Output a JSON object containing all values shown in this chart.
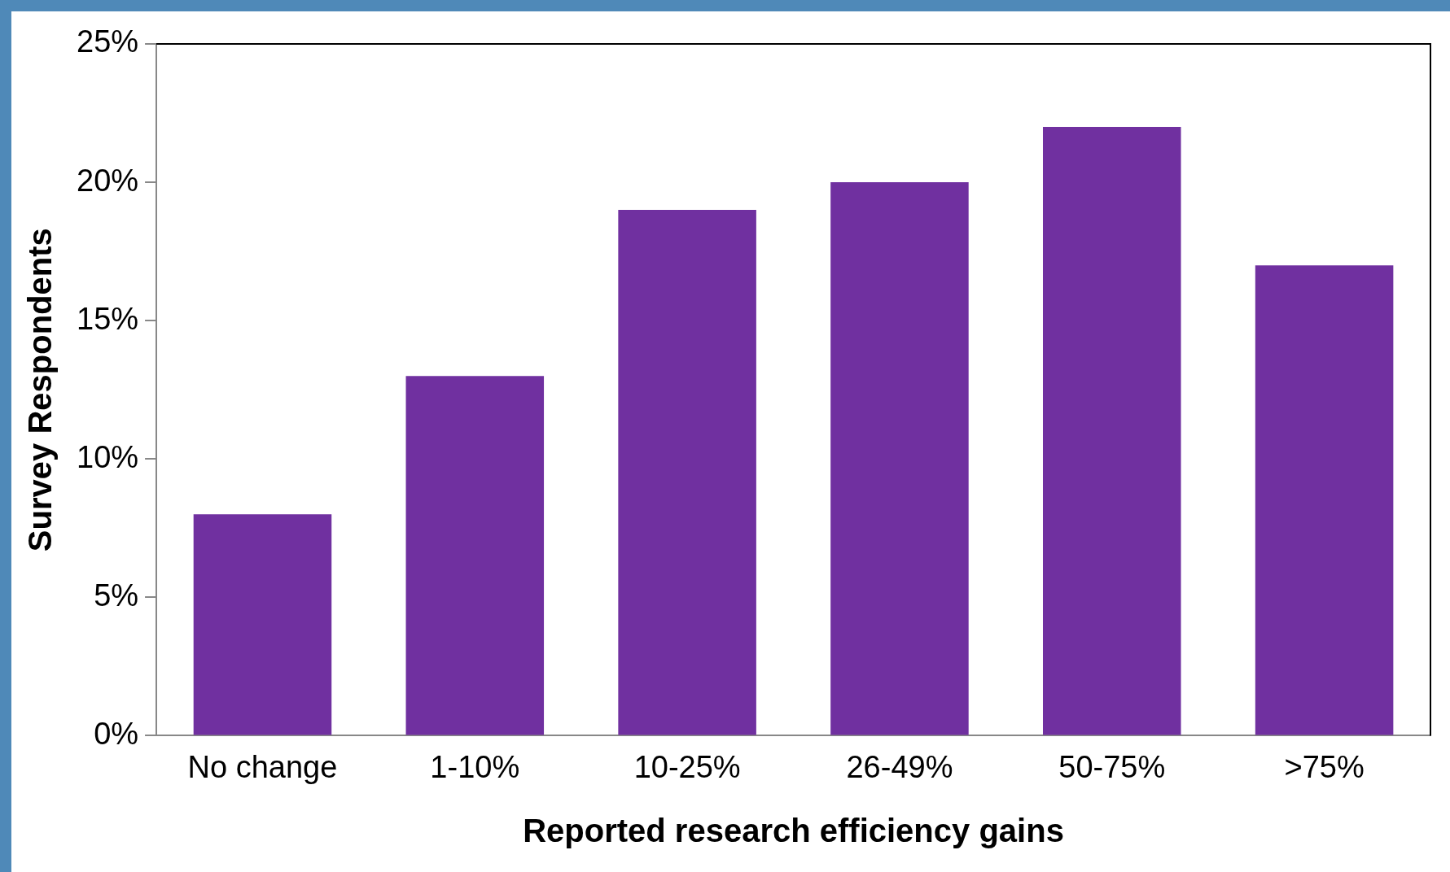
{
  "chart_data": {
    "type": "bar",
    "xlabel": "Reported research efficiency gains",
    "ylabel": "Survey Respondents",
    "categories": [
      "No change",
      "1-10%",
      "10-25%",
      "26-49%",
      "50-75%",
      ">75%"
    ],
    "values": [
      8,
      13,
      19,
      20,
      22,
      17
    ],
    "color": "#7030a0",
    "ylim": [
      0,
      25
    ],
    "yticks": [
      {
        "value": 0,
        "label": "0%"
      },
      {
        "value": 5,
        "label": "5%"
      },
      {
        "value": 10,
        "label": "10%"
      },
      {
        "value": 15,
        "label": "15%"
      },
      {
        "value": 20,
        "label": "20%"
      },
      {
        "value": 25,
        "label": "25%"
      }
    ],
    "grid": false,
    "legend": false
  }
}
